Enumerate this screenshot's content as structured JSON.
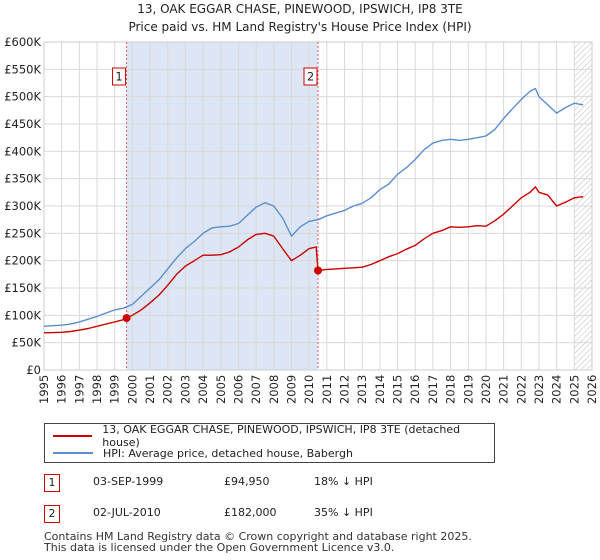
{
  "title": {
    "line1": "13, OAK EGGAR CHASE, PINEWOOD, IPSWICH, IP8 3TE",
    "line2": "Price paid vs. HM Land Registry's House Price Index (HPI)"
  },
  "colors": {
    "property": "#cc0000",
    "hpi": "#5b8ed1",
    "shade": "#dde6f5",
    "grid": "#d9d9d9",
    "marker_line": "#e06060"
  },
  "chart_data": {
    "type": "line",
    "title": "13, OAK EGGAR CHASE, PINEWOOD, IPSWICH, IP8 3TE — Price paid vs. HM Land Registry's House Price Index (HPI)",
    "xlabel": "",
    "ylabel": "",
    "xlim": [
      1995,
      2026
    ],
    "ylim": [
      0,
      600000
    ],
    "y_ticks": [
      0,
      50000,
      100000,
      150000,
      200000,
      250000,
      300000,
      350000,
      400000,
      450000,
      500000,
      550000,
      600000
    ],
    "y_tick_labels": [
      "£0",
      "£50K",
      "£100K",
      "£150K",
      "£200K",
      "£250K",
      "£300K",
      "£350K",
      "£400K",
      "£450K",
      "£500K",
      "£550K",
      "£600K"
    ],
    "x_ticks": [
      1995,
      1996,
      1997,
      1998,
      1999,
      2000,
      2001,
      2002,
      2003,
      2004,
      2005,
      2006,
      2007,
      2008,
      2009,
      2010,
      2011,
      2012,
      2013,
      2014,
      2015,
      2016,
      2017,
      2018,
      2019,
      2020,
      2021,
      2022,
      2023,
      2024,
      2025,
      2026
    ],
    "x_tick_labels": [
      "1995",
      "1996",
      "1997",
      "1998",
      "1999",
      "2000",
      "2001",
      "2002",
      "2003",
      "2004",
      "2005",
      "2006",
      "2007",
      "2008",
      "2009",
      "2010",
      "2011",
      "2012",
      "2013",
      "2014",
      "2015",
      "2016",
      "2017",
      "2018",
      "2019",
      "2020",
      "2021",
      "2022",
      "2023",
      "2024",
      "2025",
      "2026"
    ],
    "grid": true,
    "shaded_range": [
      1999.67,
      2010.5
    ],
    "hatched_from": 2025.0,
    "series": [
      {
        "name": "13, OAK EGGAR CHASE, PINEWOOD, IPSWICH, IP8 3TE (detached house)",
        "color": "#cc0000",
        "x": [
          1995.0,
          1995.5,
          1996.0,
          1996.5,
          1997.0,
          1997.5,
          1998.0,
          1998.5,
          1999.0,
          1999.5,
          1999.67,
          2000.0,
          2000.5,
          2001.0,
          2001.5,
          2002.0,
          2002.5,
          2003.0,
          2003.5,
          2004.0,
          2004.5,
          2005.0,
          2005.5,
          2006.0,
          2006.5,
          2007.0,
          2007.5,
          2008.0,
          2008.5,
          2009.0,
          2009.5,
          2010.0,
          2010.4,
          2010.5,
          2011.0,
          2011.5,
          2012.0,
          2012.5,
          2013.0,
          2013.5,
          2014.0,
          2014.5,
          2015.0,
          2015.5,
          2016.0,
          2016.5,
          2017.0,
          2017.5,
          2018.0,
          2018.5,
          2019.0,
          2019.5,
          2020.0,
          2020.5,
          2021.0,
          2021.5,
          2022.0,
          2022.5,
          2022.8,
          2023.0,
          2023.5,
          2024.0,
          2024.5,
          2025.0,
          2025.5
        ],
        "values": [
          68000,
          68500,
          69000,
          70500,
          73000,
          76000,
          80000,
          84000,
          88000,
          92000,
          94950,
          100000,
          110000,
          123000,
          137000,
          155000,
          175000,
          190000,
          200000,
          210000,
          210000,
          211000,
          216000,
          225000,
          238000,
          248000,
          250000,
          245000,
          222000,
          200000,
          210000,
          222000,
          225000,
          182000,
          184000,
          185000,
          186000,
          187000,
          188000,
          193000,
          200000,
          207000,
          213000,
          221000,
          228000,
          240000,
          250000,
          255000,
          262000,
          261000,
          262000,
          264000,
          263000,
          273000,
          285000,
          300000,
          315000,
          325000,
          335000,
          325000,
          320000,
          300000,
          307000,
          315000,
          317000
        ]
      },
      {
        "name": "HPI: Average price, detached house, Babergh",
        "color": "#5b8ed1",
        "x": [
          1995.0,
          1995.5,
          1996.0,
          1996.5,
          1997.0,
          1997.5,
          1998.0,
          1998.5,
          1999.0,
          1999.5,
          2000.0,
          2000.5,
          2001.0,
          2001.5,
          2002.0,
          2002.5,
          2003.0,
          2003.5,
          2004.0,
          2004.5,
          2005.0,
          2005.5,
          2006.0,
          2006.5,
          2007.0,
          2007.5,
          2008.0,
          2008.5,
          2009.0,
          2009.5,
          2010.0,
          2010.5,
          2011.0,
          2011.5,
          2012.0,
          2012.5,
          2013.0,
          2013.5,
          2014.0,
          2014.5,
          2015.0,
          2015.5,
          2016.0,
          2016.5,
          2017.0,
          2017.5,
          2018.0,
          2018.5,
          2019.0,
          2019.5,
          2020.0,
          2020.5,
          2021.0,
          2021.5,
          2022.0,
          2022.5,
          2022.8,
          2023.0,
          2023.5,
          2024.0,
          2024.5,
          2025.0,
          2025.5
        ],
        "values": [
          80000,
          81000,
          82000,
          84000,
          88000,
          93000,
          98000,
          104000,
          110000,
          113000,
          120000,
          135000,
          150000,
          165000,
          185000,
          205000,
          222000,
          235000,
          250000,
          260000,
          262000,
          263000,
          268000,
          283000,
          298000,
          306000,
          300000,
          278000,
          245000,
          262000,
          272000,
          275000,
          282000,
          287000,
          292000,
          300000,
          305000,
          315000,
          330000,
          340000,
          358000,
          370000,
          385000,
          403000,
          415000,
          420000,
          422000,
          420000,
          422000,
          425000,
          428000,
          440000,
          460000,
          478000,
          495000,
          510000,
          515000,
          500000,
          485000,
          470000,
          480000,
          488000,
          485000
        ]
      }
    ],
    "markers": [
      {
        "label": "1",
        "x": 1999.67,
        "value": 94950
      },
      {
        "label": "2",
        "x": 2010.5,
        "value": 182000
      }
    ],
    "legend_position": "below"
  },
  "legend": {
    "property_label": "13, OAK EGGAR CHASE, PINEWOOD, IPSWICH, IP8 3TE (detached house)",
    "hpi_label": "HPI: Average price, detached house, Babergh"
  },
  "transactions": [
    {
      "num": "1",
      "date": "03-SEP-1999",
      "price": "£94,950",
      "hpi": "18% ↓ HPI"
    },
    {
      "num": "2",
      "date": "02-JUL-2010",
      "price": "£182,000",
      "hpi": "35% ↓ HPI"
    }
  ],
  "footer": {
    "line1": "Contains HM Land Registry data © Crown copyright and database right 2025.",
    "line2": "This data is licensed under the Open Government Licence v3.0."
  }
}
